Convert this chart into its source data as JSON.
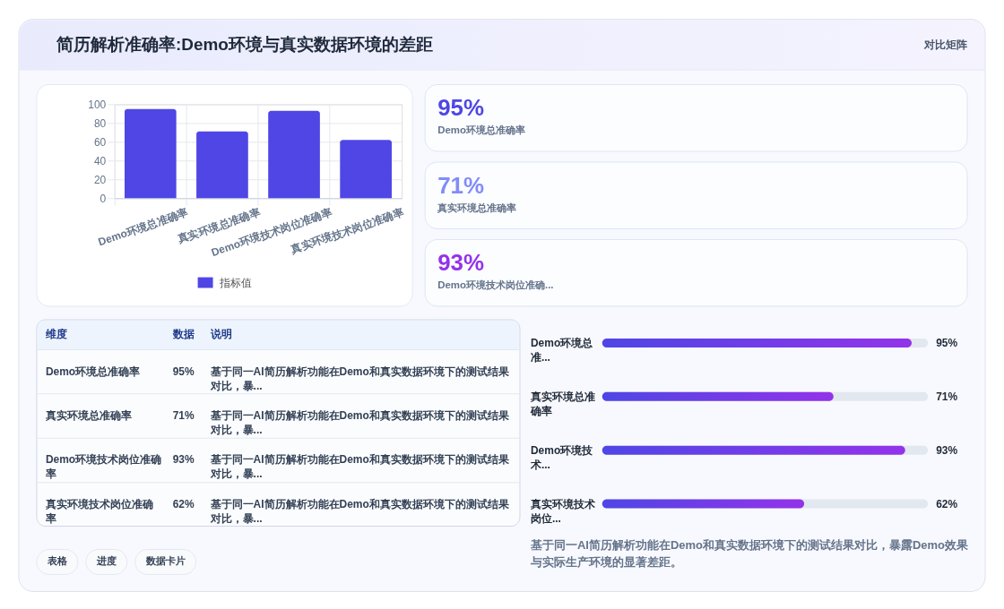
{
  "chart_data": [
    {
      "type": "other",
      "title": "简历解析准确率:Demo环境与真实数据环境的差距",
      "subtitle": "对比矩阵"
    },
    {
      "type": "bar",
      "categories": [
        "Demo环境总准确率",
        "真实环境总准确率",
        "Demo环境技术岗位准确率",
        "真实环境技术岗位准确率"
      ],
      "series": [
        {
          "name": "指标值",
          "color": "#4f46e5",
          "values": [
            95,
            71,
            93,
            62
          ]
        }
      ],
      "ylim": [
        0,
        100
      ],
      "yticks": [
        0,
        20,
        40,
        60,
        80,
        100
      ],
      "grid": true,
      "legend": "bottom"
    },
    {
      "type": "other",
      "annotations": [
        "95%",
        "Demo环境总准确率",
        "71%",
        "真实环境总准确率",
        "93%",
        "Demo环境技术岗位准确..."
      ],
      "colors": [
        "#4f46e5",
        "#818cf8",
        "#9333ea"
      ]
    },
    {
      "type": "other",
      "annotations": [
        "维度",
        "数据",
        "说明",
        "Demo环境总准确率",
        "95%",
        "基于同一AI简历解析功能在Demo和真实数据环境下的测试结果对比，暴...",
        "真实环境总准确率",
        "71%",
        "基于同一AI简历解析功能在Demo和真实数据环境下的测试结果对比，暴...",
        "Demo环境技术岗位准确率",
        "93%",
        "基于同一AI简历解析功能在Demo和真实数据环境下的测试结果对比，暴...",
        "真实环境技术岗位准确率",
        "62%",
        "基于同一AI简历解析功能在Demo和真实数据环境下的测试结果对比，暴..."
      ]
    },
    {
      "type": "bar",
      "orientation": "horizontal",
      "categories": [
        "Demo环境总准...",
        "真实环境总准确率",
        "Demo环境技术...",
        "真实环境技术岗位..."
      ],
      "values": [
        95,
        71,
        93,
        62
      ],
      "value_labels": [
        "95%",
        "71%",
        "93%",
        "62%"
      ],
      "color": "#4f46e5",
      "xlim": [
        0,
        100
      ],
      "tick_labels": "y",
      "annotations": [
        "基于同一AI简历解析功能在Demo和真实数据环境下的测试结果对比，暴露Demo效果与实际生产环境的显著差距。"
      ]
    },
    {
      "type": "other",
      "annotations": [
        "表格",
        "进度",
        "数据卡片"
      ]
    }
  ]
}
